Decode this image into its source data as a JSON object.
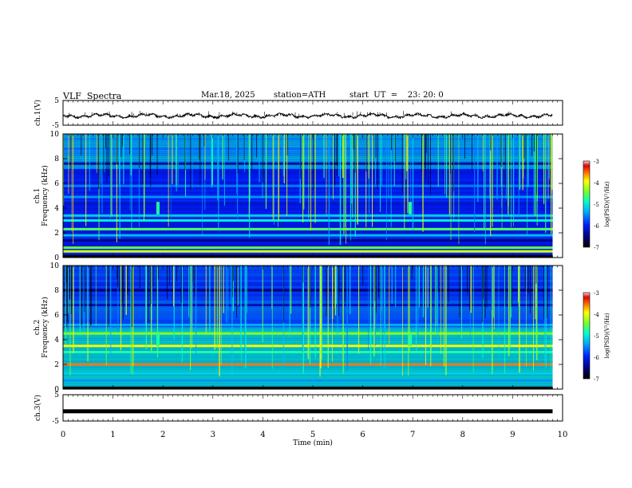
{
  "header": {
    "title": "VLF  Spectra",
    "date": "Mar.18, 2025",
    "station": "station=ATH",
    "start": "start  UT  =    23: 20: 0"
  },
  "chart_data": [
    {
      "type": "line",
      "panel": "ch1-waveform",
      "ylabel": "ch.1(V)",
      "ylim": [
        -5,
        5
      ],
      "yticks": [
        "5",
        "-5"
      ],
      "xlim": [
        0,
        10
      ],
      "baseline_v": -1.2,
      "note_values": "noisy trace around -1.2 V with occasional spikes to about 0 V"
    },
    {
      "type": "heatmap",
      "panel": "ch1-spectrogram",
      "ylabel": "ch.1\nFrequency  (kHz)",
      "ylim": [
        0,
        10
      ],
      "yticks": [
        "0",
        "2",
        "4",
        "6",
        "8",
        "10"
      ],
      "xlim": [
        0,
        10
      ],
      "data_end_min": 9.8,
      "colorbar": {
        "label": "log(PSD)(V²/Hz)",
        "range": [
          -7,
          -3
        ],
        "ticks": [
          "-3",
          "-4",
          "-5",
          "-6",
          "-7"
        ]
      },
      "bands": [
        {
          "f_khz": 8.8,
          "level": -5.7
        },
        {
          "f_khz": 7.6,
          "level": -6.4
        },
        {
          "f_khz": 6.3,
          "level": -6.0
        },
        {
          "f_khz": 5.8,
          "level": -5.6
        },
        {
          "f_khz": 4.9,
          "level": -5.5
        },
        {
          "f_khz": 4.4,
          "level": -6.2
        },
        {
          "f_khz": 3.4,
          "level": -5.2
        },
        {
          "f_khz": 3.0,
          "level": -5.0
        },
        {
          "f_khz": 2.3,
          "level": -4.6
        },
        {
          "f_khz": 1.8,
          "level": -5.3
        },
        {
          "f_khz": 1.4,
          "level": -6.5
        },
        {
          "f_khz": 0.8,
          "level": -4.5
        },
        {
          "f_khz": 0.5,
          "level": -4.1
        }
      ],
      "spots": [
        {
          "t_min": 1.9,
          "f_khz": 4.0
        },
        {
          "t_min": 6.95,
          "f_khz": 4.0
        }
      ]
    },
    {
      "type": "heatmap",
      "panel": "ch2-spectrogram",
      "ylabel": "ch.2\nFrequency  (kHz)",
      "ylim": [
        0,
        10
      ],
      "yticks": [
        "0",
        "2",
        "4",
        "6",
        "8",
        "10"
      ],
      "xlim": [
        0,
        10
      ],
      "data_end_min": 9.8,
      "colorbar": {
        "label": "log(PSD)(V²/Hz)",
        "range": [
          -7,
          -3
        ],
        "ticks": [
          "-3",
          "-4",
          "-5",
          "-6",
          "-7"
        ]
      },
      "bands": [
        {
          "f_khz": 8.0,
          "level": -6.6
        },
        {
          "f_khz": 6.8,
          "level": -6.3
        },
        {
          "f_khz": 5.7,
          "level": -5.8
        },
        {
          "f_khz": 5.2,
          "level": -5.4
        },
        {
          "f_khz": 4.5,
          "level": -4.4
        },
        {
          "f_khz": 3.5,
          "level": -4.0
        },
        {
          "f_khz": 3.0,
          "level": -4.8
        },
        {
          "f_khz": 2.0,
          "level": -3.6
        },
        {
          "f_khz": 1.3,
          "level": -5.2
        },
        {
          "f_khz": 0.7,
          "level": -5.5
        }
      ],
      "spots": [
        {
          "t_min": 1.9,
          "f_khz": 4.0
        },
        {
          "t_min": 6.95,
          "f_khz": 4.0
        }
      ]
    },
    {
      "type": "line",
      "panel": "ch3-waveform",
      "ylabel": "ch.3(V)",
      "ylim": [
        -5,
        5
      ],
      "yticks": [
        "5",
        "-5"
      ],
      "xlim": [
        0,
        10
      ],
      "xlabel": "Time  (min)",
      "xticks": [
        "0",
        "1",
        "2",
        "3",
        "4",
        "5",
        "6",
        "7",
        "8",
        "9",
        "10"
      ],
      "baseline_v": -1.3
    }
  ]
}
